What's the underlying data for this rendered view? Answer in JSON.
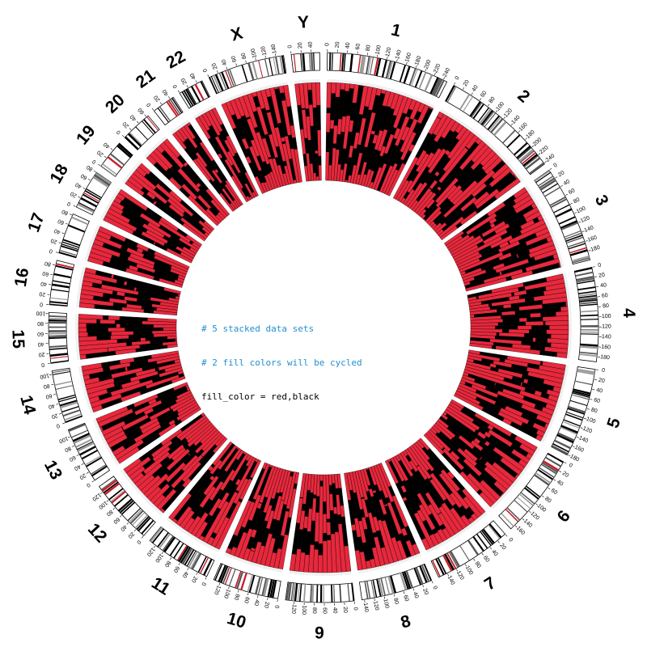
{
  "chart_data": {
    "type": "bar",
    "layout": "circular",
    "stacked_datasets": 5,
    "fill_colors": [
      "#e8283c",
      "#000000"
    ],
    "chromosomes": [
      {
        "name": "1",
        "size": 248,
        "ticks": [
          "0",
          "20",
          "40",
          "60",
          "80",
          "100",
          "120",
          "140",
          "160",
          "180",
          "200",
          "220",
          "240"
        ]
      },
      {
        "name": "2",
        "size": 242,
        "ticks": [
          "0",
          "20",
          "40",
          "60",
          "80",
          "100",
          "120",
          "140",
          "160",
          "180",
          "200",
          "220",
          "240"
        ]
      },
      {
        "name": "3",
        "size": 198,
        "ticks": [
          "0",
          "20",
          "40",
          "60",
          "80",
          "100",
          "120",
          "140",
          "160",
          "180"
        ]
      },
      {
        "name": "4",
        "size": 190,
        "ticks": [
          "0",
          "20",
          "40",
          "60",
          "80",
          "100",
          "120",
          "140",
          "160",
          "180"
        ]
      },
      {
        "name": "5",
        "size": 181,
        "ticks": [
          "0",
          "20",
          "40",
          "60",
          "80",
          "100",
          "120",
          "140",
          "160",
          "180"
        ]
      },
      {
        "name": "6",
        "size": 171,
        "ticks": [
          "0",
          "20",
          "40",
          "60",
          "80",
          "100",
          "120",
          "140",
          "160"
        ]
      },
      {
        "name": "7",
        "size": 159,
        "ticks": [
          "0",
          "20",
          "40",
          "60",
          "80",
          "100",
          "120",
          "140"
        ]
      },
      {
        "name": "8",
        "size": 145,
        "ticks": [
          "0",
          "20",
          "40",
          "60",
          "80",
          "100",
          "120",
          "140"
        ]
      },
      {
        "name": "9",
        "size": 138,
        "ticks": [
          "0",
          "20",
          "40",
          "60",
          "80",
          "100",
          "120"
        ]
      },
      {
        "name": "10",
        "size": 134,
        "ticks": [
          "0",
          "20",
          "40",
          "60",
          "80",
          "100",
          "120"
        ]
      },
      {
        "name": "11",
        "size": 135,
        "ticks": [
          "0",
          "20",
          "40",
          "60",
          "80",
          "100",
          "120"
        ]
      },
      {
        "name": "12",
        "size": 133,
        "ticks": [
          "0",
          "20",
          "40",
          "60",
          "80",
          "100",
          "120"
        ]
      },
      {
        "name": "13",
        "size": 114,
        "ticks": [
          "0",
          "20",
          "40",
          "60",
          "80",
          "100"
        ]
      },
      {
        "name": "14",
        "size": 107,
        "ticks": [
          "0",
          "20",
          "40",
          "60",
          "80",
          "100"
        ]
      },
      {
        "name": "15",
        "size": 102,
        "ticks": [
          "0",
          "20",
          "40",
          "60",
          "80",
          "100"
        ]
      },
      {
        "name": "16",
        "size": 90,
        "ticks": [
          "0",
          "20",
          "40",
          "60",
          "80"
        ]
      },
      {
        "name": "17",
        "size": 83,
        "ticks": [
          "0",
          "20",
          "40",
          "60",
          "80"
        ]
      },
      {
        "name": "18",
        "size": 80,
        "ticks": [
          "0",
          "20",
          "40",
          "60",
          "80"
        ]
      },
      {
        "name": "19",
        "size": 59,
        "ticks": [
          "0",
          "20",
          "40"
        ]
      },
      {
        "name": "20",
        "size": 64,
        "ticks": [
          "0",
          "20",
          "40",
          "60"
        ]
      },
      {
        "name": "21",
        "size": 47,
        "ticks": [
          "0",
          "20",
          "40"
        ]
      },
      {
        "name": "22",
        "size": 51,
        "ticks": [
          "0",
          "20",
          "40"
        ]
      },
      {
        "name": "X",
        "size": 156,
        "ticks": [
          "0",
          "20",
          "40",
          "60",
          "80",
          "100",
          "120",
          "140"
        ]
      },
      {
        "name": "Y",
        "size": 57,
        "ticks": [
          "0",
          "20",
          "40"
        ]
      }
    ]
  },
  "annotation": {
    "line1": "# 5 stacked data sets",
    "line2": "# 2 fill colors will be cycled",
    "line3": "fill_color = red,black"
  }
}
